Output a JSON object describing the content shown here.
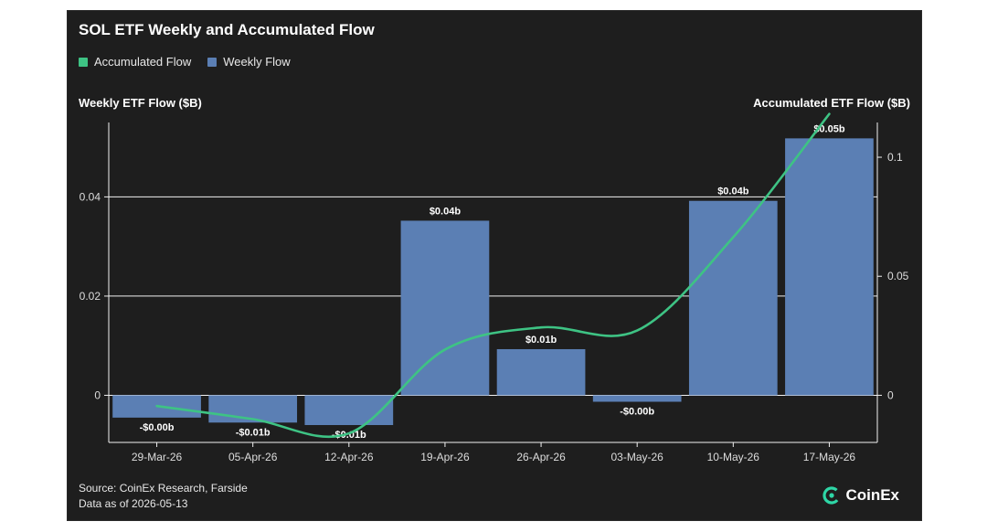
{
  "chart_data": {
    "type": "bar",
    "title": "SOL ETF Weekly and Accumulated Flow",
    "legend": [
      {
        "name": "Accumulated Flow",
        "color": "#3ec384"
      },
      {
        "name": "Weekly Flow",
        "color": "#5b7fb4"
      }
    ],
    "legend_position": "top-left",
    "categories": [
      "29-Mar-26",
      "05-Apr-26",
      "12-Apr-26",
      "19-Apr-26",
      "26-Apr-26",
      "03-May-26",
      "10-May-26",
      "17-May-26"
    ],
    "series": [
      {
        "name": "Weekly Flow",
        "type": "bar",
        "axis": "left",
        "color": "#5b7fb4",
        "values": [
          -0.0045,
          -0.0055,
          -0.006,
          0.0352,
          0.0093,
          -0.0013,
          0.0392,
          0.0518
        ],
        "labels": [
          "-$0.00b",
          "-$0.01b",
          "-$0.01b",
          "$0.04b",
          "$0.01b",
          "-$0.00b",
          "$0.04b",
          "$0.05b"
        ]
      },
      {
        "name": "Accumulated Flow",
        "type": "line",
        "axis": "right",
        "color": "#3ec384",
        "values": [
          -0.0045,
          -0.01,
          -0.016,
          0.0192,
          0.0285,
          0.0272,
          0.0664,
          0.1182
        ]
      }
    ],
    "ylabel_left": "Weekly ETF Flow ($B)",
    "ylabel_right": "Accumulated ETF Flow ($B)",
    "ylim_left": [
      -0.0095,
      0.055
    ],
    "ylim_right": [
      -0.0198,
      0.1146
    ],
    "yticks_left": [
      {
        "value": 0,
        "label": "0"
      },
      {
        "value": 0.02,
        "label": "0.02"
      },
      {
        "value": 0.04,
        "label": "0.04"
      }
    ],
    "yticks_right": [
      {
        "value": 0,
        "label": "0"
      },
      {
        "value": 0.05,
        "label": "0.05"
      },
      {
        "value": 0.1,
        "label": "0.1"
      }
    ],
    "grid": true
  },
  "footer": {
    "source": "Source: CoinEx Research, Farside",
    "data_as_of": "Data as of 2026-05-13"
  },
  "brand": {
    "name": "CoinEx",
    "icon": "coinex-logo-icon",
    "color": "#2ed6a6"
  }
}
